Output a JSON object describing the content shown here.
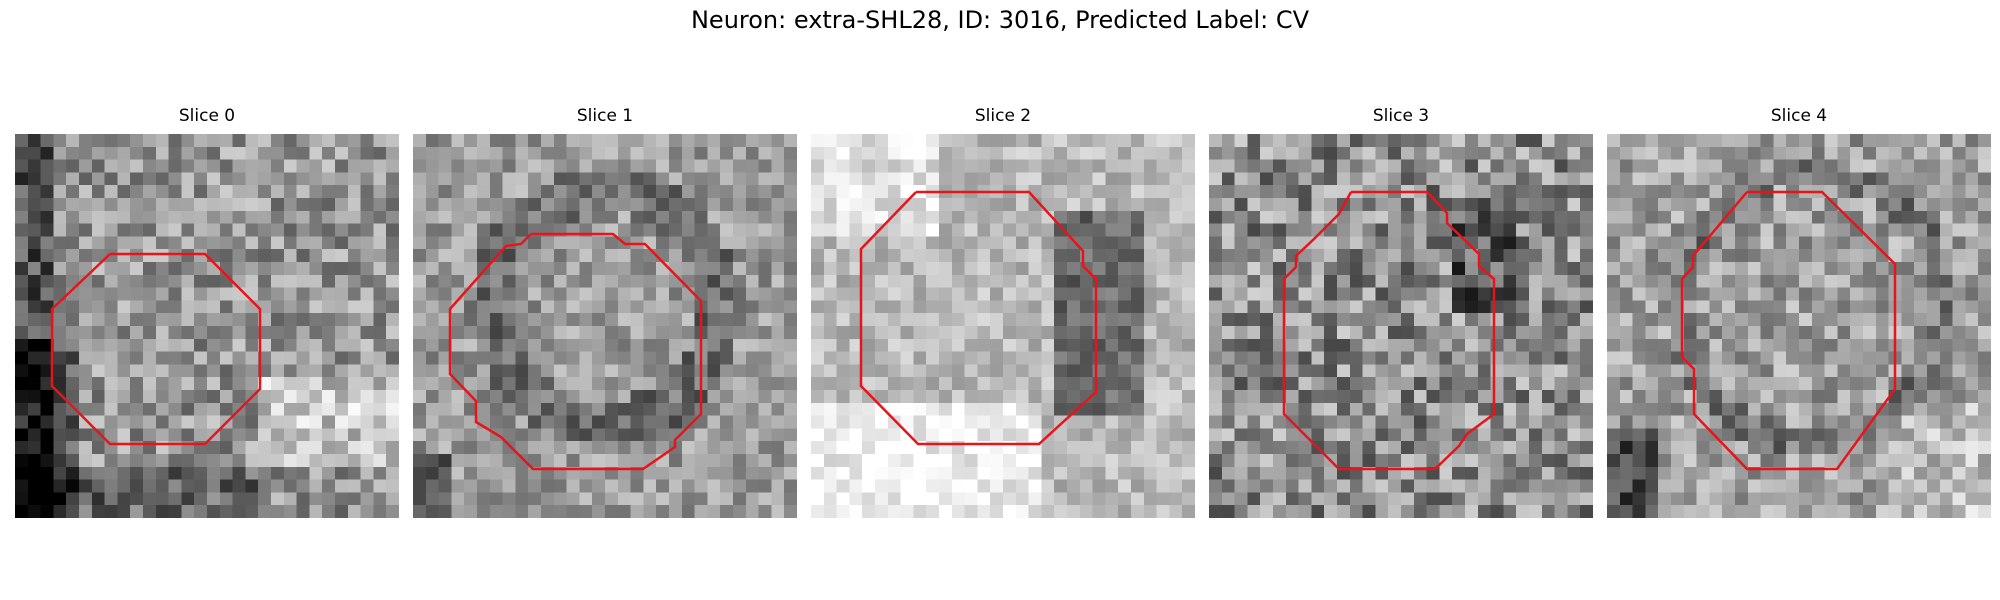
{
  "suptitle": "Neuron: extra-SHL28, ID: 3016, Predicted Label: CV",
  "contour_color": "#e8141c",
  "panels": [
    {
      "title": "Slice 0"
    },
    {
      "title": "Slice 1"
    },
    {
      "title": "Slice 2"
    },
    {
      "title": "Slice 3"
    },
    {
      "title": "Slice 4"
    }
  ]
}
